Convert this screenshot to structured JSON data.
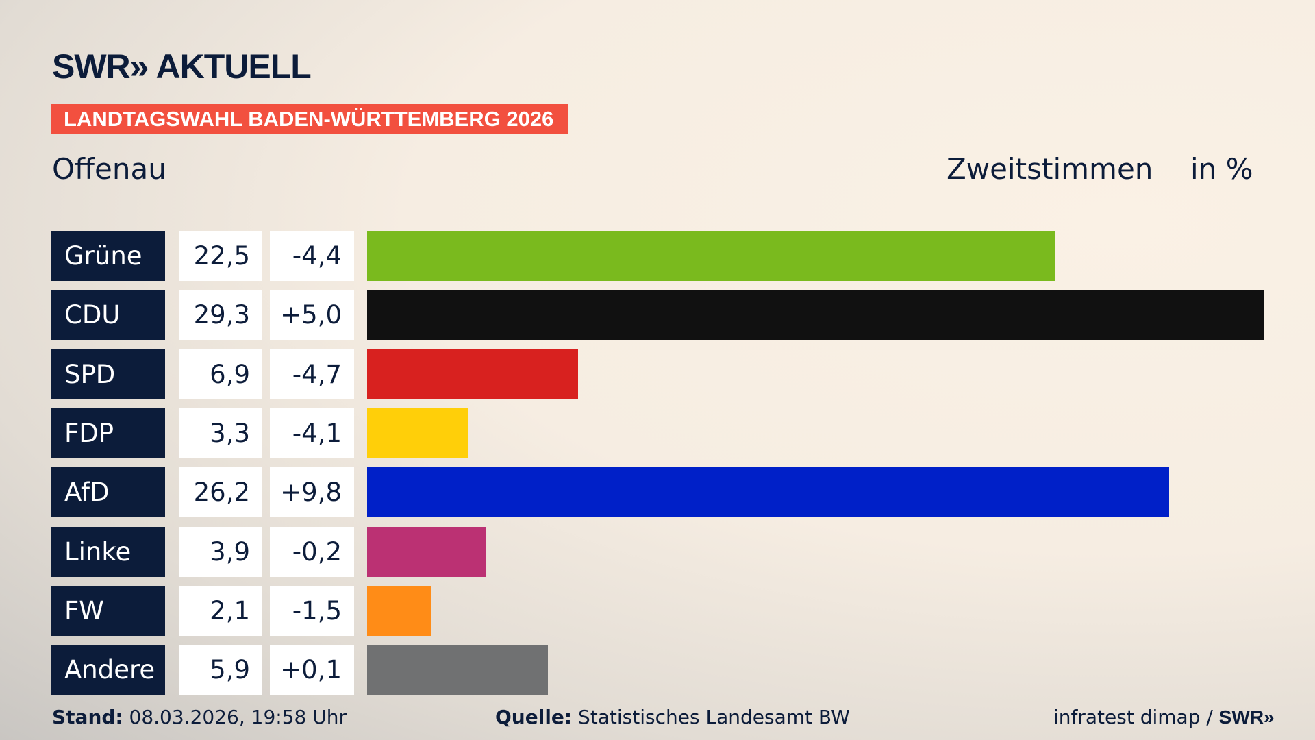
{
  "header": {
    "logo_text": "SWR» AKTUELL",
    "banner": "LANDTAGSWAHL BADEN-WÜRTTEMBERG 2026",
    "region": "Offenau",
    "metric": "Zweitstimmen",
    "unit": "in %"
  },
  "chart_data": {
    "type": "bar",
    "orientation": "horizontal",
    "categories": [
      "Grüne",
      "CDU",
      "SPD",
      "FDP",
      "AfD",
      "Linke",
      "FW",
      "Andere"
    ],
    "values": [
      22.5,
      29.3,
      6.9,
      3.3,
      26.2,
      3.9,
      2.1,
      5.9
    ],
    "value_labels": [
      "22,5",
      "29,3",
      "6,9",
      "3,3",
      "26,2",
      "3,9",
      "2,1",
      "5,9"
    ],
    "changes": [
      -4.4,
      5.0,
      -4.7,
      -4.1,
      9.8,
      -0.2,
      -1.5,
      0.1
    ],
    "change_labels": [
      "-4,4",
      "+5,0",
      "-4,7",
      "-4,1",
      "+9,8",
      "-0,2",
      "-1,5",
      "+0,1"
    ],
    "colors": [
      "#7aba1e",
      "#111111",
      "#d8211f",
      "#ffcf09",
      "#0020c8",
      "#bb3173",
      "#ff8c17",
      "#707172"
    ],
    "xlim": [
      0,
      29.3
    ]
  },
  "footer": {
    "stand_label": "Stand:",
    "stand_value": "08.03.2026, 19:58 Uhr",
    "quelle_label": "Quelle:",
    "quelle_value": "Statistisches Landesamt BW",
    "credit": "infratest dimap /",
    "credit_logo": "SWR»"
  }
}
